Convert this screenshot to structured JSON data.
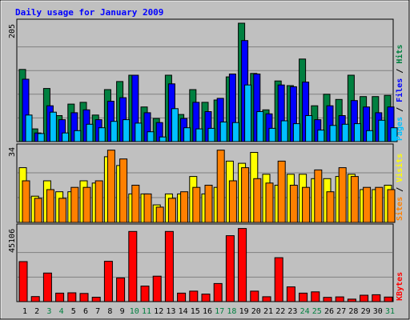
{
  "colors": {
    "background": "#ffffff",
    "frame": "#c0c0c0",
    "plot": "#c0c0c0",
    "title": "#0000ff",
    "hits": "#008040",
    "files": "#0000ff",
    "pages": "#00c0ff",
    "visits": "#ffff00",
    "sites": "#ff8000",
    "kbytes": "#ff0000",
    "weekend_day": "#008040",
    "weekday": "#000000"
  },
  "chart_data": {
    "type": "bar",
    "title": "Daily usage for January 2009",
    "categories": [
      "1",
      "2",
      "3",
      "4",
      "5",
      "6",
      "7",
      "8",
      "9",
      "10",
      "11",
      "12",
      "13",
      "14",
      "15",
      "16",
      "17",
      "18",
      "19",
      "20",
      "21",
      "22",
      "23",
      "24",
      "25",
      "26",
      "27",
      "28",
      "29",
      "30",
      "31"
    ],
    "weekend_days": [
      "3",
      "4",
      "10",
      "11",
      "17",
      "18",
      "24",
      "25",
      "31"
    ],
    "panels": [
      {
        "id": "hits-files-pages",
        "max_label": "205",
        "ylim": [
          0,
          205
        ],
        "legend": [
          "Pages",
          "Files",
          "Hits"
        ],
        "series": [
          {
            "name": "Hits",
            "color_key": "hits",
            "values": [
              125,
              22,
              92,
              45,
              65,
              68,
              46,
              90,
              104,
              115,
              60,
              40,
              115,
              47,
              90,
              68,
              72,
              112,
              205,
              118,
              55,
              105,
              97,
              143,
              62,
              82,
              73,
              115,
              78,
              78,
              80
            ]
          },
          {
            "name": "Files",
            "color_key": "files",
            "values": [
              108,
              15,
              62,
              38,
              50,
              55,
              38,
              70,
              76,
              115,
              50,
              33,
              100,
              40,
              68,
              52,
              75,
              117,
              175,
              117,
              48,
              98,
              95,
              103,
              38,
              62,
              45,
              71,
              60,
              50,
              60
            ]
          },
          {
            "name": "Pages",
            "color_key": "pages",
            "values": [
              46,
              14,
              51,
              15,
              19,
              30,
              24,
              35,
              38,
              32,
              17,
              8,
              57,
              24,
              22,
              23,
              34,
              33,
              98,
              52,
              23,
              36,
              31,
              45,
              20,
              28,
              30,
              31,
              19,
              37,
              24
            ]
          }
        ]
      },
      {
        "id": "visits-sites",
        "max_label": "34",
        "ylim": [
          0,
          34
        ],
        "legend": [
          "Sites",
          "Visits"
        ],
        "series": [
          {
            "name": "Visits",
            "color_key": "visits",
            "values": [
              25,
              12,
              19,
              14,
              14,
              19,
              18,
              30,
              26,
              13,
              13,
              8,
              13,
              13,
              21,
              13,
              16,
              28,
              27,
              32,
              22,
              17,
              22,
              22,
              20,
              20,
              21,
              22,
              15,
              15,
              17
            ]
          },
          {
            "name": "Sites",
            "color_key": "sites",
            "values": [
              19,
              11,
              15,
              11,
              16,
              16,
              19,
              33,
              29,
              17,
              13,
              7,
              11,
              14,
              16,
              17,
              33,
              19,
              25,
              20,
              18,
              28,
              17,
              16,
              24,
              14,
              25,
              21,
              16,
              16,
              15
            ]
          }
        ]
      },
      {
        "id": "kbytes",
        "max_label": "45106",
        "ylim": [
          0,
          45106
        ],
        "legend": [
          "KBytes"
        ],
        "series": [
          {
            "name": "KBytes",
            "color_key": "kbytes",
            "values": [
              24500,
              3100,
              17500,
              5200,
              5400,
              5000,
              2700,
              24700,
              14500,
              43000,
              9500,
              15600,
              43000,
              5200,
              6400,
              4600,
              11100,
              40400,
              44800,
              6400,
              3000,
              26900,
              9000,
              5200,
              6000,
              2600,
              2900,
              1500,
              3900,
              4200,
              2800
            ]
          }
        ]
      }
    ]
  }
}
